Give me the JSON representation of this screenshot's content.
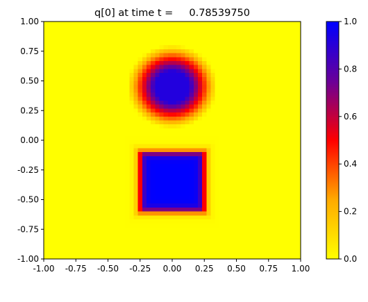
{
  "chart_data": {
    "type": "heatmap",
    "title": "q[0] at time t =     0.78539750",
    "xlabel": "",
    "ylabel": "",
    "xlim": [
      -1.0,
      1.0
    ],
    "ylim": [
      -1.0,
      1.0
    ],
    "x_ticks": [
      "-1.00",
      "-0.75",
      "-0.50",
      "-0.25",
      "0.00",
      "0.25",
      "0.50",
      "0.75",
      "1.00"
    ],
    "y_ticks": [
      "1.00",
      "0.75",
      "0.50",
      "0.25",
      "0.00",
      "-0.25",
      "-0.50",
      "-0.75",
      "-1.00"
    ],
    "grid": false,
    "colorbar": {
      "range": [
        0.0,
        1.0
      ],
      "ticks": [
        "1.0",
        "0.8",
        "0.6",
        "0.4",
        "0.2",
        "0.0"
      ],
      "colors": [
        "#ffff00",
        "#ffaa00",
        "#ff0000",
        "#6a0099",
        "#0000ff"
      ]
    },
    "features": [
      {
        "shape": "cone",
        "center": [
          0.0,
          0.45
        ],
        "radius": 0.35,
        "peak_value": 0.92
      },
      {
        "shape": "square",
        "center": [
          0.0,
          -0.35
        ],
        "half_width": 0.25,
        "value": 1.0
      }
    ]
  }
}
